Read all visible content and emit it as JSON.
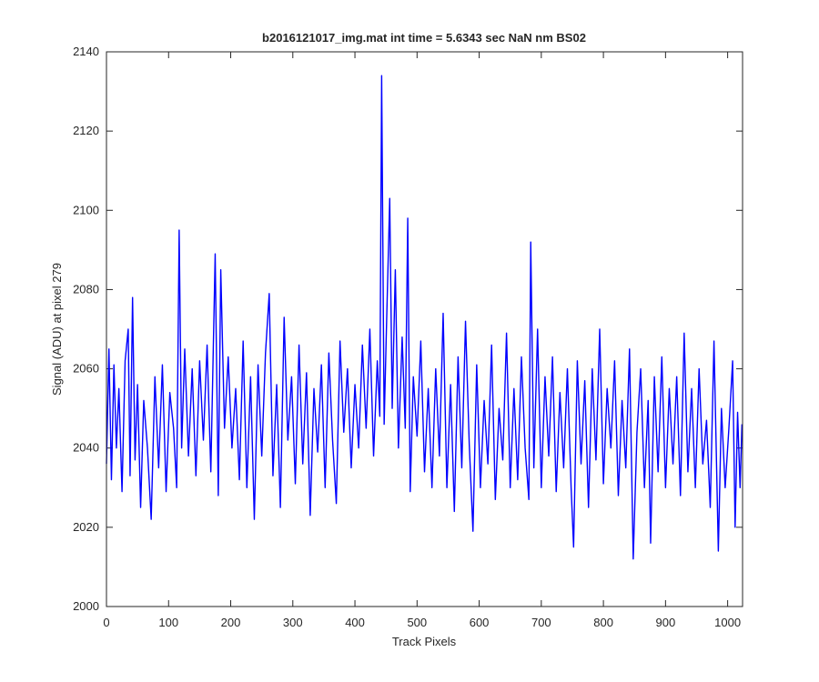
{
  "chart_data": {
    "type": "line",
    "title": "b2016121017_img.mat int time = 5.6343 sec  NaN nm BS02",
    "x_label": "Track Pixels",
    "y_label": "Signal (ADU) at pixel 279",
    "x": [
      0,
      4,
      8,
      12,
      16,
      20,
      25,
      30,
      35,
      38,
      42,
      46,
      50,
      55,
      60,
      66,
      72,
      78,
      84,
      90,
      96,
      102,
      108,
      113,
      117,
      121,
      126,
      132,
      138,
      144,
      150,
      156,
      162,
      168,
      175,
      180,
      184,
      190,
      196,
      202,
      208,
      214,
      220,
      226,
      232,
      238,
      244,
      250,
      256,
      262,
      268,
      274,
      280,
      286,
      292,
      298,
      304,
      310,
      316,
      322,
      328,
      334,
      340,
      346,
      352,
      358,
      364,
      370,
      376,
      382,
      388,
      394,
      400,
      406,
      412,
      418,
      424,
      430,
      436,
      440,
      443,
      447,
      451,
      456,
      460,
      465,
      470,
      476,
      481,
      485,
      489,
      494,
      500,
      506,
      512,
      518,
      524,
      530,
      536,
      542,
      548,
      554,
      560,
      566,
      572,
      578,
      584,
      590,
      596,
      602,
      608,
      614,
      620,
      626,
      632,
      638,
      644,
      650,
      656,
      662,
      668,
      674,
      680,
      683,
      688,
      694,
      700,
      706,
      712,
      718,
      724,
      730,
      736,
      742,
      748,
      752,
      758,
      764,
      770,
      776,
      782,
      788,
      794,
      800,
      806,
      812,
      818,
      824,
      830,
      836,
      842,
      848,
      854,
      860,
      866,
      872,
      876,
      882,
      888,
      894,
      900,
      906,
      912,
      918,
      924,
      930,
      936,
      942,
      948,
      954,
      960,
      966,
      972,
      978,
      985,
      990,
      996,
      1002,
      1008,
      1012,
      1016,
      1020,
      1023
    ],
    "series": [
      {
        "name": "signal",
        "color": "#0000ff",
        "values": [
          2036,
          2065,
          2032,
          2061,
          2040,
          2055,
          2029,
          2062,
          2070,
          2033,
          2078,
          2037,
          2056,
          2025,
          2052,
          2040,
          2022,
          2058,
          2035,
          2061,
          2029,
          2054,
          2045,
          2030,
          2095,
          2040,
          2065,
          2038,
          2060,
          2033,
          2062,
          2042,
          2066,
          2034,
          2089,
          2028,
          2085,
          2045,
          2063,
          2040,
          2055,
          2032,
          2067,
          2030,
          2058,
          2022,
          2061,
          2038,
          2064,
          2079,
          2033,
          2056,
          2025,
          2073,
          2042,
          2058,
          2031,
          2066,
          2036,
          2059,
          2023,
          2055,
          2039,
          2061,
          2030,
          2064,
          2042,
          2026,
          2067,
          2044,
          2060,
          2035,
          2056,
          2040,
          2066,
          2045,
          2070,
          2038,
          2062,
          2048,
          2134,
          2046,
          2072,
          2103,
          2050,
          2085,
          2040,
          2068,
          2045,
          2098,
          2029,
          2058,
          2043,
          2067,
          2034,
          2055,
          2030,
          2060,
          2038,
          2074,
          2030,
          2056,
          2024,
          2063,
          2035,
          2072,
          2041,
          2019,
          2061,
          2030,
          2052,
          2036,
          2066,
          2027,
          2050,
          2037,
          2069,
          2030,
          2055,
          2032,
          2063,
          2040,
          2027,
          2092,
          2035,
          2070,
          2030,
          2058,
          2038,
          2063,
          2029,
          2054,
          2035,
          2060,
          2030,
          2015,
          2062,
          2036,
          2057,
          2025,
          2060,
          2037,
          2070,
          2031,
          2055,
          2040,
          2062,
          2028,
          2052,
          2035,
          2065,
          2012,
          2044,
          2060,
          2030,
          2052,
          2016,
          2058,
          2034,
          2063,
          2030,
          2055,
          2036,
          2058,
          2028,
          2069,
          2034,
          2055,
          2030,
          2060,
          2036,
          2047,
          2025,
          2067,
          2014,
          2050,
          2030,
          2045,
          2062,
          2020,
          2049,
          2030,
          2046
        ]
      }
    ],
    "xlim": [
      0,
      1024
    ],
    "ylim": [
      2000,
      2140
    ],
    "xticks": [
      0,
      100,
      200,
      300,
      400,
      500,
      600,
      700,
      800,
      900,
      1000
    ],
    "yticks": [
      2000,
      2020,
      2040,
      2060,
      2080,
      2100,
      2120,
      2140
    ]
  }
}
